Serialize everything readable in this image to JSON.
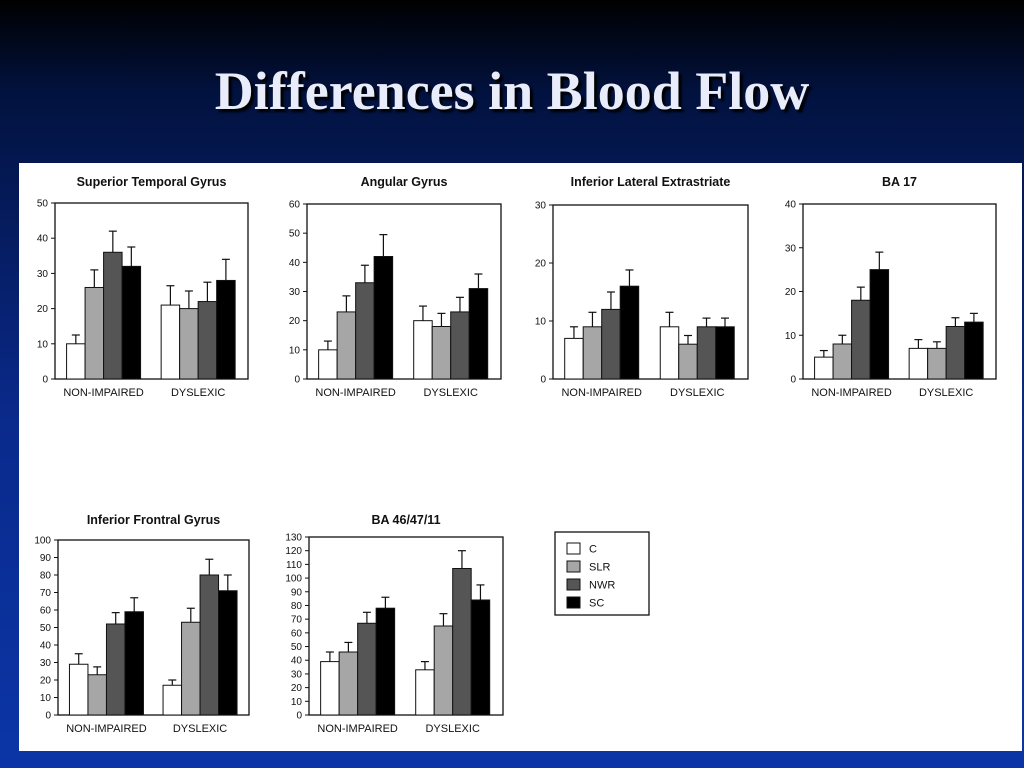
{
  "slide": {
    "title": "Differences in Blood Flow"
  },
  "legend": {
    "items": [
      {
        "label": "C",
        "color": "#ffffff"
      },
      {
        "label": "SLR",
        "color": "#a6a6a6"
      },
      {
        "label": "NWR",
        "color": "#555555"
      },
      {
        "label": "SC",
        "color": "#000000"
      }
    ]
  },
  "chart_data": [
    {
      "type": "bar",
      "title": "Superior Temporal Gyrus",
      "categories": [
        "NON-IMPAIRED",
        "DYSLEXIC"
      ],
      "ylim": [
        0,
        50
      ],
      "yticks": [
        0,
        10,
        20,
        30,
        40,
        50
      ],
      "series": [
        {
          "name": "C",
          "values": [
            10,
            21
          ],
          "errors": [
            2.5,
            5.5
          ]
        },
        {
          "name": "SLR",
          "values": [
            26,
            20
          ],
          "errors": [
            5,
            5
          ]
        },
        {
          "name": "NWR",
          "values": [
            36,
            22
          ],
          "errors": [
            6,
            5.5
          ]
        },
        {
          "name": "SC",
          "values": [
            32,
            28
          ],
          "errors": [
            5.5,
            6
          ]
        }
      ]
    },
    {
      "type": "bar",
      "title": "Angular Gyrus",
      "categories": [
        "NON-IMPAIRED",
        "DYSLEXIC"
      ],
      "ylim": [
        0,
        60
      ],
      "yticks": [
        0,
        10,
        20,
        30,
        40,
        50,
        60
      ],
      "series": [
        {
          "name": "C",
          "values": [
            10,
            20
          ],
          "errors": [
            3,
            5
          ]
        },
        {
          "name": "SLR",
          "values": [
            23,
            18
          ],
          "errors": [
            5.5,
            4.5
          ]
        },
        {
          "name": "NWR",
          "values": [
            33,
            23
          ],
          "errors": [
            6,
            5
          ]
        },
        {
          "name": "SC",
          "values": [
            42,
            31
          ],
          "errors": [
            7.5,
            5
          ]
        }
      ]
    },
    {
      "type": "bar",
      "title": "Inferior Lateral Extrastriate",
      "categories": [
        "NON-IMPAIRED",
        "DYSLEXIC"
      ],
      "ylim": [
        0,
        30
      ],
      "yticks": [
        0,
        10,
        20,
        30
      ],
      "series": [
        {
          "name": "C",
          "values": [
            7,
            9
          ],
          "errors": [
            2,
            2.5
          ]
        },
        {
          "name": "SLR",
          "values": [
            9,
            6
          ],
          "errors": [
            2.5,
            1.5
          ]
        },
        {
          "name": "NWR",
          "values": [
            12,
            9
          ],
          "errors": [
            3,
            1.5
          ]
        },
        {
          "name": "SC",
          "values": [
            16,
            9
          ],
          "errors": [
            2.8,
            1.5
          ]
        }
      ]
    },
    {
      "type": "bar",
      "title": "BA 17",
      "categories": [
        "NON-IMPAIRED",
        "DYSLEXIC"
      ],
      "ylim": [
        0,
        40
      ],
      "yticks": [
        0,
        10,
        20,
        30,
        40
      ],
      "series": [
        {
          "name": "C",
          "values": [
            5,
            7
          ],
          "errors": [
            1.5,
            2
          ]
        },
        {
          "name": "SLR",
          "values": [
            8,
            7
          ],
          "errors": [
            2,
            1.5
          ]
        },
        {
          "name": "NWR",
          "values": [
            18,
            12
          ],
          "errors": [
            3,
            2
          ]
        },
        {
          "name": "SC",
          "values": [
            25,
            13
          ],
          "errors": [
            4,
            2
          ]
        }
      ]
    },
    {
      "type": "bar",
      "title": "Inferior Frontral Gyrus",
      "categories": [
        "NON-IMPAIRED",
        "DYSLEXIC"
      ],
      "ylim": [
        0,
        100
      ],
      "yticks": [
        0,
        10,
        20,
        30,
        40,
        50,
        60,
        70,
        80,
        90,
        100
      ],
      "series": [
        {
          "name": "C",
          "values": [
            29,
            17
          ],
          "errors": [
            6,
            3
          ]
        },
        {
          "name": "SLR",
          "values": [
            23,
            53
          ],
          "errors": [
            4.5,
            8
          ]
        },
        {
          "name": "NWR",
          "values": [
            52,
            80
          ],
          "errors": [
            6.5,
            9
          ]
        },
        {
          "name": "SC",
          "values": [
            59,
            71
          ],
          "errors": [
            8,
            9
          ]
        }
      ]
    },
    {
      "type": "bar",
      "title": "BA 46/47/11",
      "categories": [
        "NON-IMPAIRED",
        "DYSLEXIC"
      ],
      "ylim": [
        0,
        130
      ],
      "yticks": [
        0,
        10,
        20,
        30,
        40,
        50,
        60,
        70,
        80,
        90,
        100,
        110,
        120,
        130
      ],
      "series": [
        {
          "name": "C",
          "values": [
            39,
            33
          ],
          "errors": [
            7,
            6
          ]
        },
        {
          "name": "SLR",
          "values": [
            46,
            65
          ],
          "errors": [
            7,
            9
          ]
        },
        {
          "name": "NWR",
          "values": [
            67,
            107
          ],
          "errors": [
            8,
            13
          ]
        },
        {
          "name": "SC",
          "values": [
            78,
            84
          ],
          "errors": [
            8,
            11
          ]
        }
      ]
    }
  ]
}
